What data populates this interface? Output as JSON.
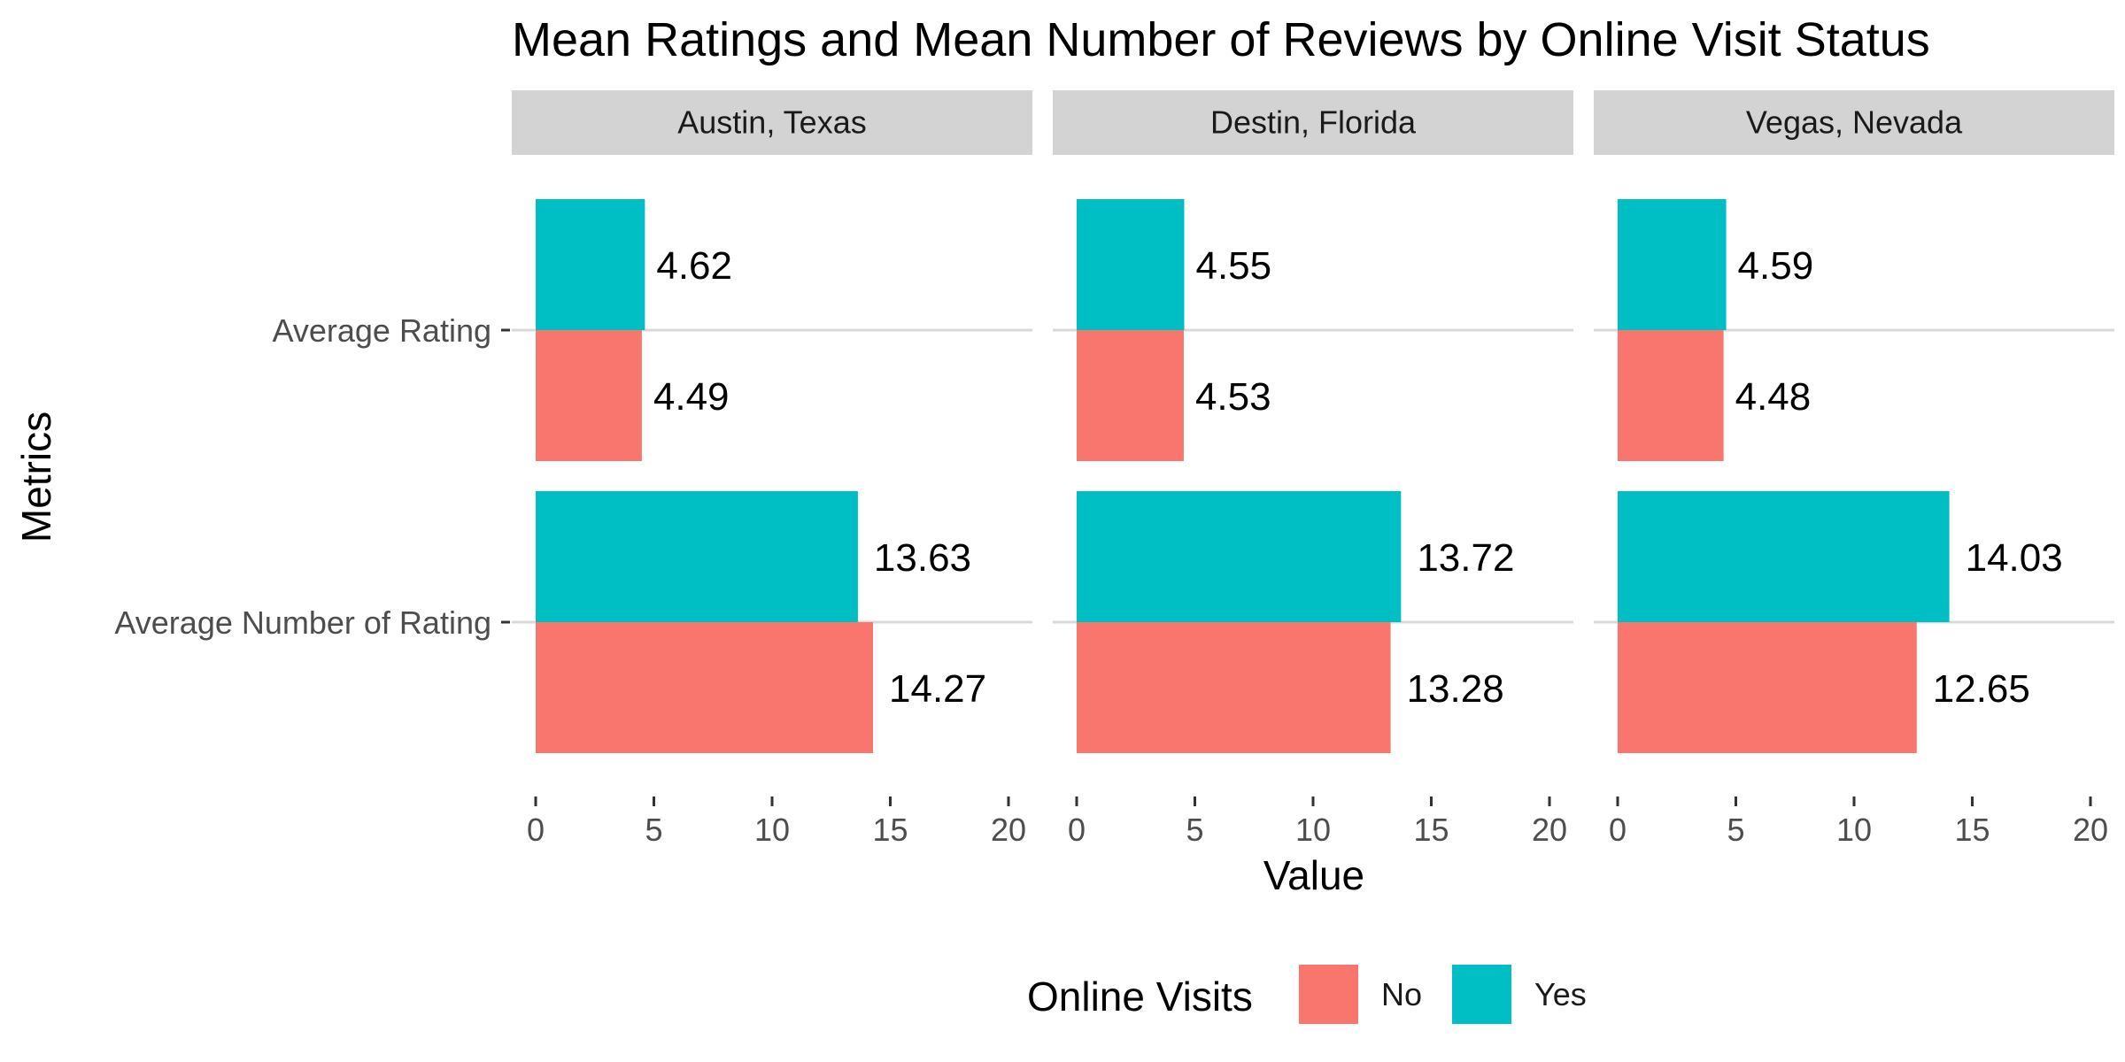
{
  "chart_data": {
    "type": "bar",
    "orientation": "horizontal",
    "title": "Mean Ratings and Mean Number of Reviews by Online Visit Status",
    "xlabel": "Value",
    "ylabel": "Metrics",
    "xlim": [
      0,
      20
    ],
    "xticks": [
      0,
      5,
      10,
      15,
      20
    ],
    "categories": [
      "Average Rating",
      "Average Number of Rating"
    ],
    "grid": true,
    "legend": {
      "title": "Online Visits",
      "placement": "bottom",
      "entries": [
        {
          "name": "No",
          "color": "#F8766D"
        },
        {
          "name": "Yes",
          "color": "#00BFC4"
        }
      ]
    },
    "facets": [
      {
        "name": "Austin, Texas",
        "series": [
          {
            "name": "No",
            "values": [
              4.49,
              14.27
            ],
            "labels": [
              "4.49",
              "14.27"
            ]
          },
          {
            "name": "Yes",
            "values": [
              4.62,
              13.63
            ],
            "labels": [
              "4.62",
              "13.63"
            ]
          }
        ]
      },
      {
        "name": "Destin, Florida",
        "series": [
          {
            "name": "No",
            "values": [
              4.53,
              13.28
            ],
            "labels": [
              "4.53",
              "13.28"
            ]
          },
          {
            "name": "Yes",
            "values": [
              4.55,
              13.72
            ],
            "labels": [
              "4.55",
              "13.72"
            ]
          }
        ]
      },
      {
        "name": "Vegas, Nevada",
        "series": [
          {
            "name": "No",
            "values": [
              4.48,
              12.65
            ],
            "labels": [
              "4.48",
              "12.65"
            ]
          },
          {
            "name": "Yes",
            "values": [
              4.59,
              14.03
            ],
            "labels": [
              "4.59",
              "14.03"
            ]
          }
        ]
      }
    ]
  }
}
